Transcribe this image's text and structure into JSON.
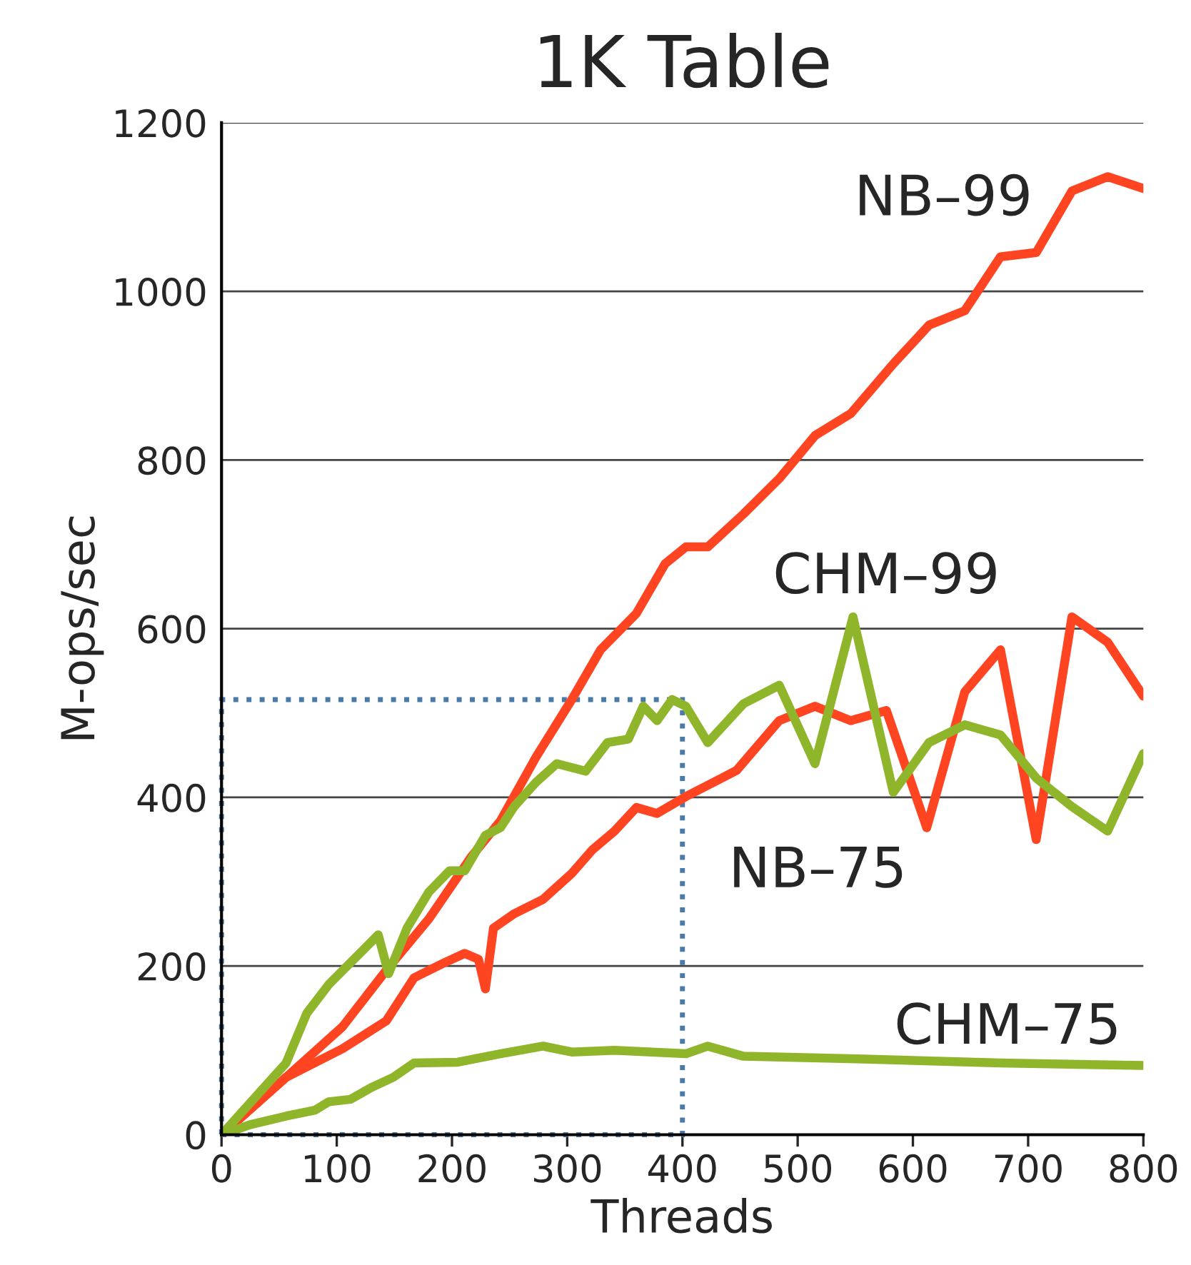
{
  "chart_data": {
    "type": "line",
    "title": "1K Table",
    "xlabel": "Threads",
    "ylabel": "M-ops/sec",
    "xlim": [
      0,
      800
    ],
    "xticks": [
      0,
      100,
      200,
      300,
      400,
      500,
      600,
      700,
      800
    ],
    "ylim": [
      0,
      1200
    ],
    "yticks": [
      0,
      200,
      400,
      600,
      800,
      1000,
      1200
    ],
    "grid": "y",
    "marker": "none",
    "line_style": "solid",
    "series": [
      {
        "name": "NB–99",
        "color": "#ff4422",
        "x": [
          0,
          56,
          105,
          143,
          180,
          217,
          242,
          273,
          304,
          329,
          360,
          385,
          403,
          422,
          453,
          484,
          515,
          546,
          583,
          614,
          645,
          676,
          707,
          738,
          769,
          800
        ],
        "values": [
          0,
          68,
          128,
          195,
          256,
          330,
          372,
          448,
          516,
          575,
          618,
          677,
          697,
          697,
          736,
          778,
          829,
          855,
          914,
          960,
          977,
          1041,
          1046,
          1119,
          1136,
          1122
        ]
      },
      {
        "name": "NB–75",
        "color": "#ff4422",
        "x": [
          0,
          56,
          105,
          143,
          167,
          192,
          211,
          223,
          229,
          236,
          254,
          279,
          304,
          322,
          341,
          360,
          378,
          403,
          447,
          484,
          515,
          546,
          577,
          612,
          645,
          676,
          707,
          738,
          769,
          800
        ],
        "values": [
          0,
          68,
          102,
          135,
          186,
          203,
          215,
          208,
          173,
          245,
          262,
          279,
          310,
          338,
          360,
          388,
          381,
          401,
          432,
          491,
          508,
          491,
          503,
          364,
          525,
          575,
          350,
          614,
          584,
          520
        ]
      },
      {
        "name": "CHM–99",
        "color": "#8fb52a",
        "x": [
          0,
          56,
          74,
          93,
          136,
          145,
          161,
          180,
          198,
          211,
          229,
          242,
          254,
          273,
          291,
          316,
          335,
          353,
          366,
          378,
          391,
          403,
          422,
          453,
          484,
          515,
          548,
          583,
          614,
          645,
          676,
          707,
          738,
          769,
          800
        ],
        "values": [
          0,
          85,
          144,
          178,
          237,
          191,
          245,
          288,
          313,
          313,
          355,
          364,
          389,
          418,
          440,
          431,
          465,
          469,
          508,
          491,
          516,
          508,
          465,
          511,
          533,
          440,
          614,
          406,
          465,
          486,
          474,
          423,
          389,
          360,
          452
        ]
      },
      {
        "name": "CHM–75",
        "color": "#8fb52a",
        "x": [
          0,
          25,
          56,
          81,
          93,
          112,
          130,
          149,
          167,
          205,
          242,
          279,
          304,
          341,
          403,
          422,
          453,
          552,
          676,
          800
        ],
        "values": [
          0,
          12,
          22,
          29,
          39,
          42,
          56,
          68,
          85,
          86,
          96,
          105,
          98,
          100,
          96,
          105,
          93,
          90,
          85,
          82
        ]
      }
    ]
  }
}
